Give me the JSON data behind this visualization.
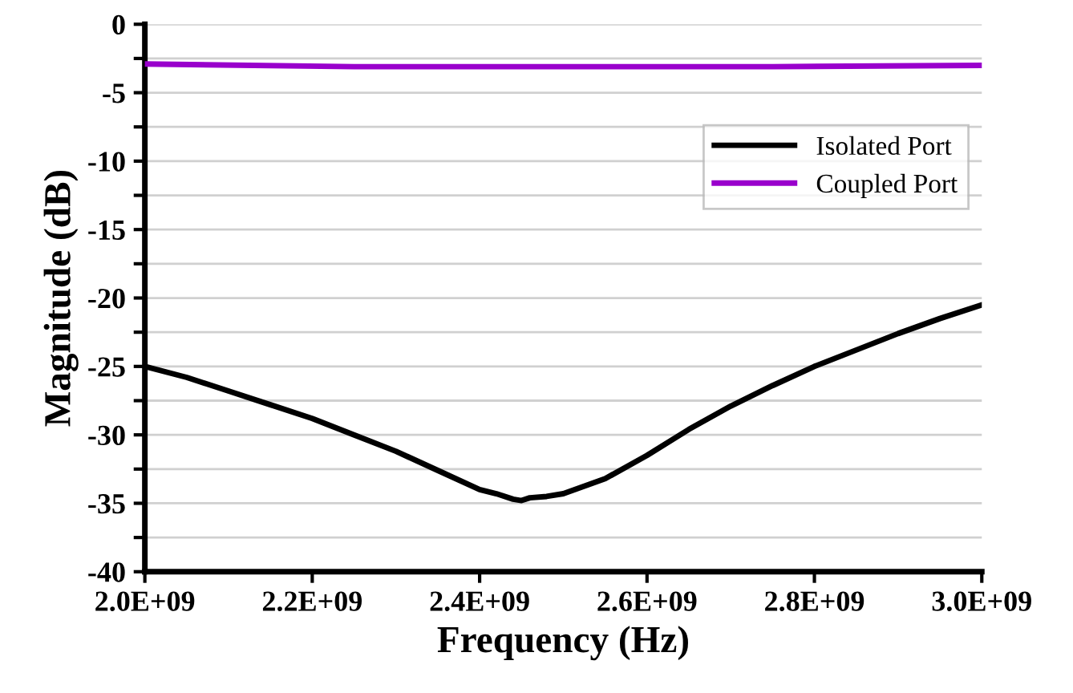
{
  "chart_data": {
    "type": "line",
    "xlabel": "Frequency (Hz)",
    "ylabel": "Magnitude (dB)",
    "xlim": [
      2000000000.0,
      3000000000.0
    ],
    "ylim": [
      -40,
      0
    ],
    "xticks": [
      {
        "value": 2000000000.0,
        "label": "2.0E+09"
      },
      {
        "value": 2200000000.0,
        "label": "2.2E+09"
      },
      {
        "value": 2400000000.0,
        "label": "2.4E+09"
      },
      {
        "value": 2600000000.0,
        "label": "2.6E+09"
      },
      {
        "value": 2800000000.0,
        "label": "2.8E+09"
      },
      {
        "value": 3000000000.0,
        "label": "3.0E+09"
      }
    ],
    "yticks": [
      -40,
      {
        "value": -37.5,
        "label": null
      },
      -35,
      {
        "value": -32.5,
        "label": null
      },
      -30,
      {
        "value": -27.5,
        "label": null
      },
      -25,
      {
        "value": -22.5,
        "label": null
      },
      -20,
      {
        "value": -17.5,
        "label": null
      },
      -15,
      {
        "value": -12.5,
        "label": null
      },
      -10,
      {
        "value": -7.5,
        "label": null
      },
      -5,
      {
        "value": -2.5,
        "label": null
      },
      0
    ],
    "grid": "y",
    "legend": "top right",
    "marker": "none",
    "line_style": "solid",
    "series": [
      {
        "name": "Isolated Port",
        "color": "#000000",
        "x": [
          2000000000.0,
          2050000000.0,
          2100000000.0,
          2150000000.0,
          2200000000.0,
          2250000000.0,
          2300000000.0,
          2350000000.0,
          2400000000.0,
          2420000000.0,
          2440000000.0,
          2450000000.0,
          2460000000.0,
          2480000000.0,
          2500000000.0,
          2550000000.0,
          2600000000.0,
          2650000000.0,
          2700000000.0,
          2750000000.0,
          2800000000.0,
          2850000000.0,
          2900000000.0,
          2950000000.0,
          3000000000.0
        ],
        "values": [
          -25.0,
          -25.8,
          -26.8,
          -27.8,
          -28.8,
          -30.0,
          -31.2,
          -32.6,
          -34.0,
          -34.3,
          -34.7,
          -34.8,
          -34.6,
          -34.5,
          -34.3,
          -33.2,
          -31.5,
          -29.6,
          -27.9,
          -26.4,
          -25.0,
          -23.8,
          -22.6,
          -21.5,
          -20.5
        ]
      },
      {
        "name": "Coupled Port",
        "color": "#9900cc",
        "x": [
          2000000000.0,
          2250000000.0,
          2500000000.0,
          2750000000.0,
          3000000000.0
        ],
        "values": [
          -2.9,
          -3.1,
          -3.1,
          -3.1,
          -3.0
        ]
      }
    ]
  }
}
